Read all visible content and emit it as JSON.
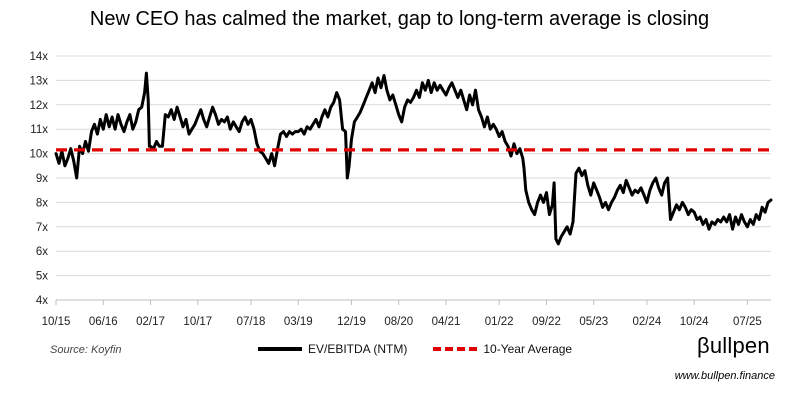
{
  "chart_data": {
    "type": "line",
    "title": "New CEO has calmed the market, gap to long-term average is closing",
    "y_ticks": [
      "4x",
      "5x",
      "6x",
      "7x",
      "8x",
      "9x",
      "10x",
      "11x",
      "12x",
      "13x",
      "14x"
    ],
    "ylim": [
      4,
      14
    ],
    "x_ticks": [
      "10/15",
      "06/16",
      "02/17",
      "10/17",
      "07/18",
      "03/19",
      "12/19",
      "08/20",
      "04/21",
      "01/22",
      "09/22",
      "05/23",
      "02/24",
      "10/24",
      "07/25"
    ],
    "x_tick_months": [
      0,
      8,
      16,
      24,
      33,
      41,
      50,
      58,
      66,
      75,
      83,
      91,
      100,
      108,
      117
    ],
    "x_range_months": [
      0,
      121
    ],
    "series": [
      {
        "name": "EV/EBITDA (NTM)",
        "color": "#000000",
        "points": [
          [
            0,
            10.0
          ],
          [
            0.5,
            9.6
          ],
          [
            1,
            10.1
          ],
          [
            1.5,
            9.5
          ],
          [
            2,
            9.8
          ],
          [
            2.5,
            10.2
          ],
          [
            3,
            9.7
          ],
          [
            3.5,
            9.0
          ],
          [
            4,
            10.3
          ],
          [
            4.5,
            10.0
          ],
          [
            5,
            10.5
          ],
          [
            5.5,
            10.1
          ],
          [
            6,
            10.9
          ],
          [
            6.5,
            11.2
          ],
          [
            7,
            10.8
          ],
          [
            7.5,
            11.4
          ],
          [
            8,
            11.0
          ],
          [
            8.5,
            11.6
          ],
          [
            9,
            11.1
          ],
          [
            9.5,
            11.5
          ],
          [
            10,
            11.0
          ],
          [
            10.5,
            11.6
          ],
          [
            11,
            11.2
          ],
          [
            11.5,
            10.9
          ],
          [
            12,
            11.3
          ],
          [
            12.5,
            11.6
          ],
          [
            13,
            11.0
          ],
          [
            13.5,
            11.3
          ],
          [
            14,
            11.8
          ],
          [
            14.5,
            11.9
          ],
          [
            15,
            12.5
          ],
          [
            15.3,
            13.3
          ],
          [
            15.6,
            12.2
          ],
          [
            15.8,
            10.3
          ],
          [
            16,
            10.3
          ],
          [
            16.5,
            10.2
          ],
          [
            17,
            10.5
          ],
          [
            17.5,
            10.3
          ],
          [
            18,
            10.3
          ],
          [
            18.5,
            11.6
          ],
          [
            19,
            11.5
          ],
          [
            19.5,
            11.8
          ],
          [
            20,
            11.4
          ],
          [
            20.5,
            11.9
          ],
          [
            21,
            11.5
          ],
          [
            21.5,
            11.1
          ],
          [
            22,
            11.4
          ],
          [
            22.5,
            10.8
          ],
          [
            23,
            11.0
          ],
          [
            23.5,
            11.2
          ],
          [
            24,
            11.5
          ],
          [
            24.5,
            11.8
          ],
          [
            25,
            11.4
          ],
          [
            25.5,
            11.1
          ],
          [
            26,
            11.5
          ],
          [
            26.5,
            11.9
          ],
          [
            27,
            11.6
          ],
          [
            27.5,
            11.2
          ],
          [
            28,
            11.4
          ],
          [
            28.5,
            11.3
          ],
          [
            29,
            11.5
          ],
          [
            29.5,
            11.0
          ],
          [
            30,
            11.3
          ],
          [
            30.5,
            11.1
          ],
          [
            31,
            10.9
          ],
          [
            31.5,
            11.3
          ],
          [
            32,
            11.5
          ],
          [
            32.5,
            11.2
          ],
          [
            33,
            11.4
          ],
          [
            33.5,
            11.0
          ],
          [
            34,
            10.4
          ],
          [
            34.5,
            10.1
          ],
          [
            35,
            10.0
          ],
          [
            35.5,
            9.8
          ],
          [
            36,
            9.6
          ],
          [
            36.5,
            10.0
          ],
          [
            37,
            9.5
          ],
          [
            37.5,
            10.2
          ],
          [
            38,
            10.8
          ],
          [
            38.5,
            10.9
          ],
          [
            39,
            10.7
          ],
          [
            39.5,
            10.9
          ],
          [
            40,
            10.8
          ],
          [
            40.5,
            10.9
          ],
          [
            41,
            10.9
          ],
          [
            41.5,
            11.0
          ],
          [
            42,
            10.8
          ],
          [
            42.5,
            11.1
          ],
          [
            43,
            11.0
          ],
          [
            43.5,
            11.2
          ],
          [
            44,
            11.4
          ],
          [
            44.5,
            11.1
          ],
          [
            45,
            11.5
          ],
          [
            45.5,
            11.8
          ],
          [
            46,
            11.5
          ],
          [
            46.5,
            11.9
          ],
          [
            47,
            12.1
          ],
          [
            47.5,
            12.5
          ],
          [
            48,
            12.2
          ],
          [
            48.5,
            11.0
          ],
          [
            49,
            10.9
          ],
          [
            49.3,
            9.0
          ],
          [
            49.6,
            9.5
          ],
          [
            50,
            10.6
          ],
          [
            50.5,
            11.3
          ],
          [
            51,
            11.5
          ],
          [
            51.5,
            11.7
          ],
          [
            52,
            12.0
          ],
          [
            52.5,
            12.3
          ],
          [
            53,
            12.6
          ],
          [
            53.5,
            12.9
          ],
          [
            54,
            12.5
          ],
          [
            54.5,
            13.1
          ],
          [
            55,
            12.7
          ],
          [
            55.5,
            13.2
          ],
          [
            56,
            12.6
          ],
          [
            56.5,
            12.2
          ],
          [
            57,
            12.4
          ],
          [
            57.5,
            12.0
          ],
          [
            58,
            11.6
          ],
          [
            58.5,
            11.3
          ],
          [
            59,
            11.9
          ],
          [
            59.5,
            12.2
          ],
          [
            60,
            12.1
          ],
          [
            60.5,
            12.3
          ],
          [
            61,
            12.6
          ],
          [
            61.5,
            12.3
          ],
          [
            62,
            12.9
          ],
          [
            62.5,
            12.6
          ],
          [
            63,
            13.0
          ],
          [
            63.5,
            12.5
          ],
          [
            64,
            12.9
          ],
          [
            64.5,
            12.6
          ],
          [
            65,
            12.8
          ],
          [
            65.5,
            12.6
          ],
          [
            66,
            12.4
          ],
          [
            66.5,
            12.7
          ],
          [
            67,
            12.9
          ],
          [
            67.5,
            12.6
          ],
          [
            68,
            12.3
          ],
          [
            68.5,
            12.6
          ],
          [
            69,
            12.2
          ],
          [
            69.5,
            11.8
          ],
          [
            70,
            12.4
          ],
          [
            70.5,
            12.0
          ],
          [
            71,
            12.6
          ],
          [
            71.5,
            11.8
          ],
          [
            72,
            11.5
          ],
          [
            72.5,
            11.1
          ],
          [
            73,
            11.5
          ],
          [
            73.5,
            11.0
          ],
          [
            74,
            11.2
          ],
          [
            74.5,
            11.0
          ],
          [
            75,
            10.7
          ],
          [
            75.5,
            10.9
          ],
          [
            76,
            10.5
          ],
          [
            76.5,
            10.3
          ],
          [
            77,
            9.9
          ],
          [
            77.5,
            10.4
          ],
          [
            78,
            10.0
          ],
          [
            78.5,
            10.2
          ],
          [
            79,
            9.8
          ],
          [
            79.2,
            9.4
          ],
          [
            79.5,
            8.5
          ],
          [
            80,
            8.0
          ],
          [
            80.5,
            7.7
          ],
          [
            81,
            7.5
          ],
          [
            81.5,
            8.0
          ],
          [
            82,
            8.3
          ],
          [
            82.5,
            8.0
          ],
          [
            83,
            8.4
          ],
          [
            83.5,
            7.5
          ],
          [
            84,
            7.9
          ],
          [
            84.3,
            8.8
          ],
          [
            84.6,
            6.5
          ],
          [
            85,
            6.3
          ],
          [
            85.5,
            6.6
          ],
          [
            86,
            6.8
          ],
          [
            86.5,
            7.0
          ],
          [
            87,
            6.7
          ],
          [
            87.5,
            7.2
          ],
          [
            88,
            9.2
          ],
          [
            88.5,
            9.4
          ],
          [
            89,
            9.1
          ],
          [
            89.5,
            9.3
          ],
          [
            90,
            8.7
          ],
          [
            90.5,
            8.3
          ],
          [
            91,
            8.8
          ],
          [
            91.5,
            8.5
          ],
          [
            92,
            8.2
          ],
          [
            92.5,
            7.8
          ],
          [
            93,
            8.0
          ],
          [
            93.5,
            7.7
          ],
          [
            94,
            8.0
          ],
          [
            94.5,
            8.2
          ],
          [
            95,
            8.5
          ],
          [
            95.5,
            8.7
          ],
          [
            96,
            8.4
          ],
          [
            96.5,
            8.9
          ],
          [
            97,
            8.6
          ],
          [
            97.5,
            8.3
          ],
          [
            98,
            8.5
          ],
          [
            98.5,
            8.4
          ],
          [
            99,
            8.6
          ],
          [
            99.5,
            8.3
          ],
          [
            100,
            8.0
          ],
          [
            100.5,
            8.5
          ],
          [
            101,
            8.8
          ],
          [
            101.5,
            9.0
          ],
          [
            102,
            8.6
          ],
          [
            102.5,
            8.3
          ],
          [
            103,
            8.8
          ],
          [
            103.5,
            9.0
          ],
          [
            104,
            7.3
          ],
          [
            104.5,
            7.6
          ],
          [
            105,
            7.9
          ],
          [
            105.5,
            7.7
          ],
          [
            106,
            8.0
          ],
          [
            106.5,
            7.8
          ],
          [
            107,
            7.5
          ],
          [
            107.5,
            7.7
          ],
          [
            108,
            7.6
          ],
          [
            108.5,
            7.3
          ],
          [
            109,
            7.4
          ],
          [
            109.5,
            7.1
          ],
          [
            110,
            7.3
          ],
          [
            110.5,
            6.9
          ],
          [
            111,
            7.2
          ],
          [
            111.5,
            7.1
          ],
          [
            112,
            7.3
          ],
          [
            112.5,
            7.2
          ],
          [
            113,
            7.4
          ],
          [
            113.5,
            7.2
          ],
          [
            114,
            7.5
          ],
          [
            114.5,
            6.9
          ],
          [
            115,
            7.4
          ],
          [
            115.5,
            7.1
          ],
          [
            116,
            7.5
          ],
          [
            116.5,
            7.2
          ],
          [
            117,
            7.0
          ],
          [
            117.5,
            7.3
          ],
          [
            118,
            7.1
          ],
          [
            118.5,
            7.5
          ],
          [
            119,
            7.3
          ],
          [
            119.5,
            7.8
          ],
          [
            120,
            7.6
          ],
          [
            120.5,
            8.0
          ],
          [
            121,
            8.1
          ]
        ]
      },
      {
        "name": "10-Year Average",
        "color": "#e00000",
        "dashed": true,
        "points": [
          [
            0,
            10.15
          ],
          [
            121,
            10.15
          ]
        ]
      }
    ]
  },
  "footer": {
    "source": "Source: Koyfin",
    "brand": "βullpen",
    "website": "www.bullpen.finance"
  }
}
